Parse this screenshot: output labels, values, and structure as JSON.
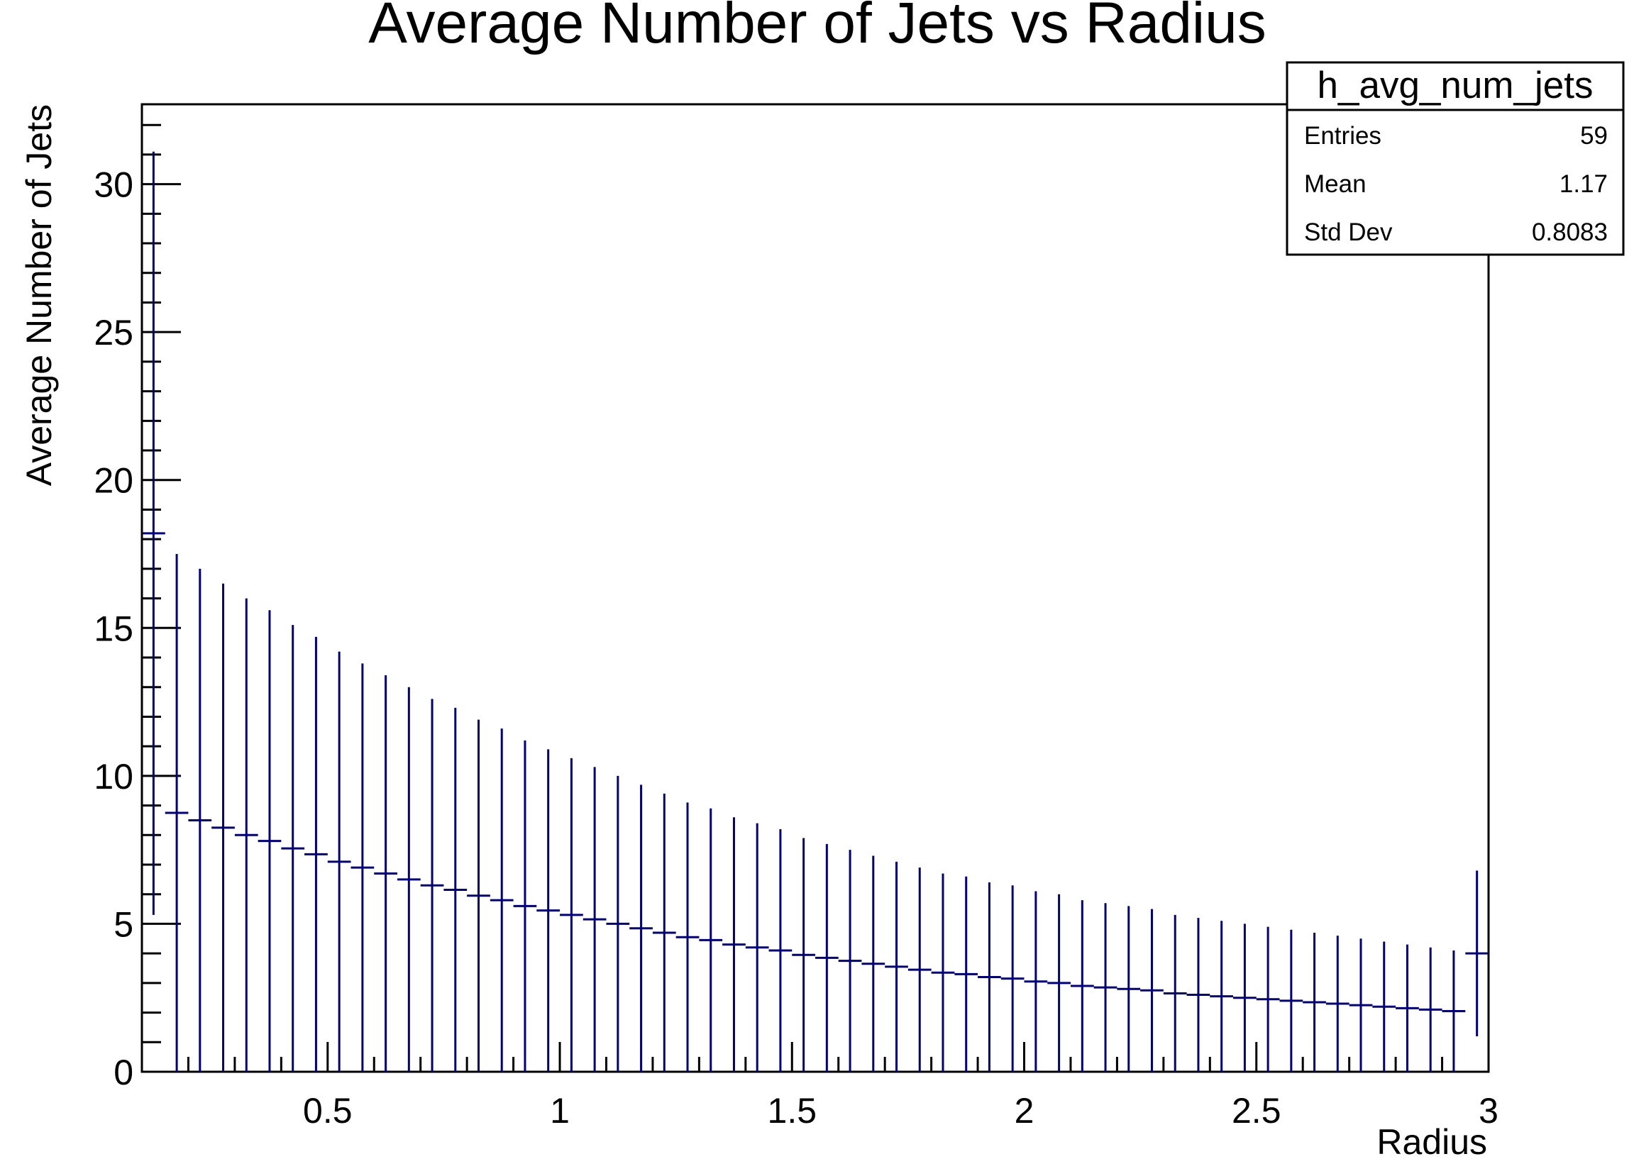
{
  "chart_data": {
    "type": "histogram",
    "title": "Average Number of Jets vs Radius",
    "xlabel": "Radius",
    "ylabel": "Average Number of Jets",
    "xlim": [
      0.1,
      3.0
    ],
    "ylim": [
      0,
      32.7
    ],
    "xticks": [
      "0.5",
      "1",
      "1.5",
      "2",
      "2.5",
      "3"
    ],
    "yticks": [
      "0",
      "5",
      "10",
      "15",
      "20",
      "25",
      "30"
    ],
    "grid": false,
    "stats_box": {
      "name": "h_avg_num_jets",
      "rows": [
        {
          "label": "Entries",
          "value": "59"
        },
        {
          "label": "Mean",
          "value": "1.17"
        },
        {
          "label": "Std Dev",
          "value": "0.8083"
        }
      ]
    },
    "series": [
      {
        "color": "#000080",
        "bin_width": 0.05,
        "bin_centers": [
          0.125,
          0.175,
          0.225,
          0.275,
          0.325,
          0.375,
          0.425,
          0.475,
          0.525,
          0.575,
          0.625,
          0.675,
          0.725,
          0.775,
          0.825,
          0.875,
          0.925,
          0.975,
          1.025,
          1.075,
          1.125,
          1.175,
          1.225,
          1.275,
          1.325,
          1.375,
          1.425,
          1.475,
          1.525,
          1.575,
          1.625,
          1.675,
          1.725,
          1.775,
          1.825,
          1.875,
          1.925,
          1.975,
          2.025,
          2.075,
          2.125,
          2.175,
          2.225,
          2.275,
          2.325,
          2.375,
          2.425,
          2.475,
          2.525,
          2.575,
          2.625,
          2.675,
          2.725,
          2.775,
          2.825,
          2.875,
          2.925,
          2.975
        ],
        "values": [
          18.2,
          8.75,
          8.5,
          8.25,
          8.0,
          7.8,
          7.55,
          7.35,
          7.1,
          6.9,
          6.7,
          6.5,
          6.3,
          6.15,
          5.95,
          5.8,
          5.6,
          5.45,
          5.3,
          5.15,
          5.0,
          4.85,
          4.7,
          4.55,
          4.45,
          4.3,
          4.2,
          4.1,
          3.95,
          3.85,
          3.75,
          3.65,
          3.55,
          3.45,
          3.35,
          3.3,
          3.2,
          3.15,
          3.05,
          3.0,
          2.9,
          2.85,
          2.8,
          2.75,
          2.65,
          2.6,
          2.55,
          2.5,
          2.45,
          2.4,
          2.35,
          2.3,
          2.25,
          2.2,
          2.15,
          2.1,
          2.05,
          4.0
        ],
        "errors": [
          12.9,
          8.75,
          8.5,
          8.25,
          8.0,
          7.8,
          7.55,
          7.35,
          7.1,
          6.9,
          6.7,
          6.5,
          6.3,
          6.15,
          5.95,
          5.8,
          5.6,
          5.45,
          5.3,
          5.15,
          5.0,
          4.85,
          4.7,
          4.55,
          4.45,
          4.3,
          4.2,
          4.1,
          3.95,
          3.85,
          3.75,
          3.65,
          3.55,
          3.45,
          3.35,
          3.3,
          3.2,
          3.15,
          3.05,
          3.0,
          2.9,
          2.85,
          2.8,
          2.75,
          2.65,
          2.6,
          2.55,
          2.5,
          2.45,
          2.4,
          2.35,
          2.3,
          2.25,
          2.2,
          2.15,
          2.1,
          2.05,
          2.8
        ]
      }
    ]
  }
}
